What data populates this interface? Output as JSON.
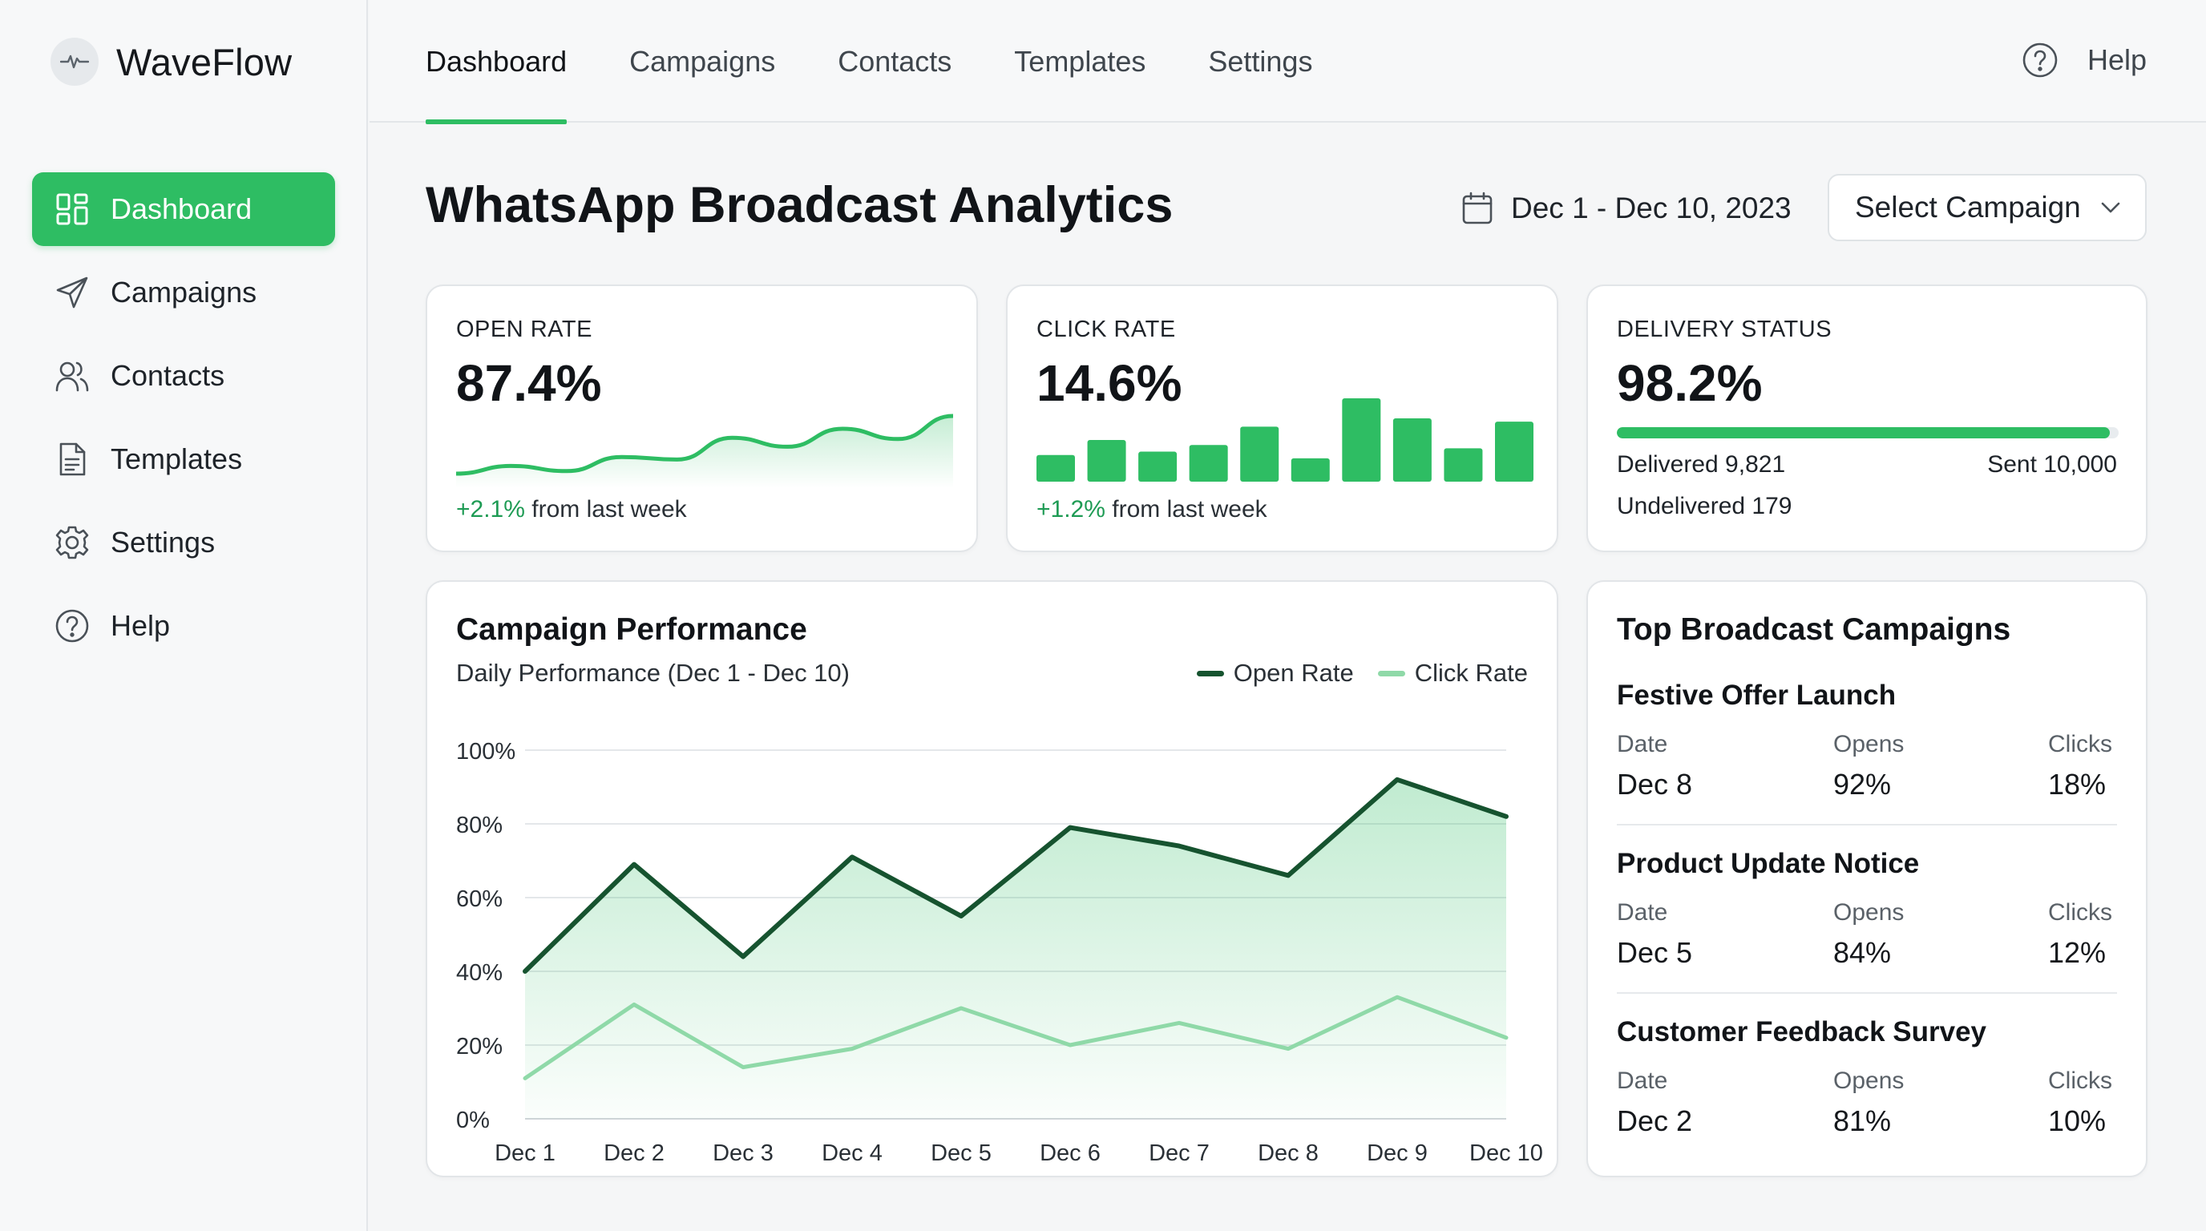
{
  "app": {
    "name": "WaveFlow"
  },
  "sidebar": {
    "items": [
      {
        "label": "Dashboard",
        "icon": "dashboard-grid-icon",
        "active": true
      },
      {
        "label": "Campaigns",
        "icon": "paper-plane-icon",
        "active": false
      },
      {
        "label": "Contacts",
        "icon": "users-icon",
        "active": false
      },
      {
        "label": "Templates",
        "icon": "document-icon",
        "active": false
      },
      {
        "label": "Settings",
        "icon": "gear-icon",
        "active": false
      },
      {
        "label": "Help",
        "icon": "help-circle-icon",
        "active": false
      }
    ]
  },
  "topnav": {
    "tabs": [
      {
        "label": "Dashboard",
        "active": true
      },
      {
        "label": "Campaigns",
        "active": false
      },
      {
        "label": "Contacts",
        "active": false
      },
      {
        "label": "Templates",
        "active": false
      },
      {
        "label": "Settings",
        "active": false
      }
    ],
    "help_label": "Help"
  },
  "header": {
    "title": "WhatsApp Broadcast Analytics",
    "date_range": "Dec 1 - Dec 10, 2023",
    "select_label": "Select Campaign"
  },
  "kpis": {
    "open_rate": {
      "label": "OPEN RATE",
      "value": "87.4%",
      "change": "+2.1%",
      "change_suffix": " from last week",
      "sparkline": [
        10,
        22,
        14,
        36,
        32,
        66,
        52,
        80,
        64,
        100
      ]
    },
    "click_rate": {
      "label": "CLICK RATE",
      "value": "14.6%",
      "change": "+1.2%",
      "change_suffix": " from last week",
      "bars": [
        32,
        50,
        36,
        44,
        66,
        28,
        100,
        76,
        40,
        72
      ]
    },
    "delivery": {
      "label": "DELIVERY STATUS",
      "value": "98.2%",
      "progress": 0.982,
      "delivered_label": "Delivered 9,821",
      "sent_label": "Sent 10,000",
      "undelivered_label": "Undelivered 179"
    }
  },
  "performance": {
    "title": "Campaign Performance",
    "subtitle": "Daily Performance (Dec 1 - Dec 10)"
  },
  "chart_data": {
    "type": "line",
    "title": "Campaign Performance",
    "subtitle": "Daily Performance (Dec 1 - Dec 10)",
    "x": [
      "Dec 1",
      "Dec 2",
      "Dec 3",
      "Dec 4",
      "Dec 5",
      "Dec 6",
      "Dec 7",
      "Dec 8",
      "Dec 9",
      "Dec 10"
    ],
    "series": [
      {
        "name": "Open Rate",
        "values": [
          40,
          69,
          44,
          71,
          55,
          79,
          74,
          66,
          92,
          82
        ],
        "color": "#16532f"
      },
      {
        "name": "Click Rate",
        "values": [
          11,
          31,
          14,
          19,
          30,
          20,
          26,
          19,
          33,
          22
        ],
        "color": "#8fd9a8"
      }
    ],
    "y_ticks": [
      "0%",
      "20%",
      "40%",
      "60%",
      "80%",
      "100%"
    ],
    "ylim": [
      0,
      100
    ],
    "grid": true,
    "legend": "top-right"
  },
  "top_campaigns": {
    "title": "Top Broadcast Campaigns",
    "headers": {
      "date": "Date",
      "opens": "Opens",
      "clicks": "Clicks"
    },
    "items": [
      {
        "name": "Festive Offer Launch",
        "date": "Dec 8",
        "opens": "92%",
        "clicks": "18%"
      },
      {
        "name": "Product Update Notice",
        "date": "Dec 5",
        "opens": "84%",
        "clicks": "12%"
      },
      {
        "name": "Customer Feedback Survey",
        "date": "Dec 2",
        "opens": "81%",
        "clicks": "10%"
      }
    ]
  },
  "colors": {
    "accent": "#2ebd63",
    "accent_dark": "#16532f",
    "accent_light": "#8fd9a8",
    "positive": "#1e9b54"
  }
}
